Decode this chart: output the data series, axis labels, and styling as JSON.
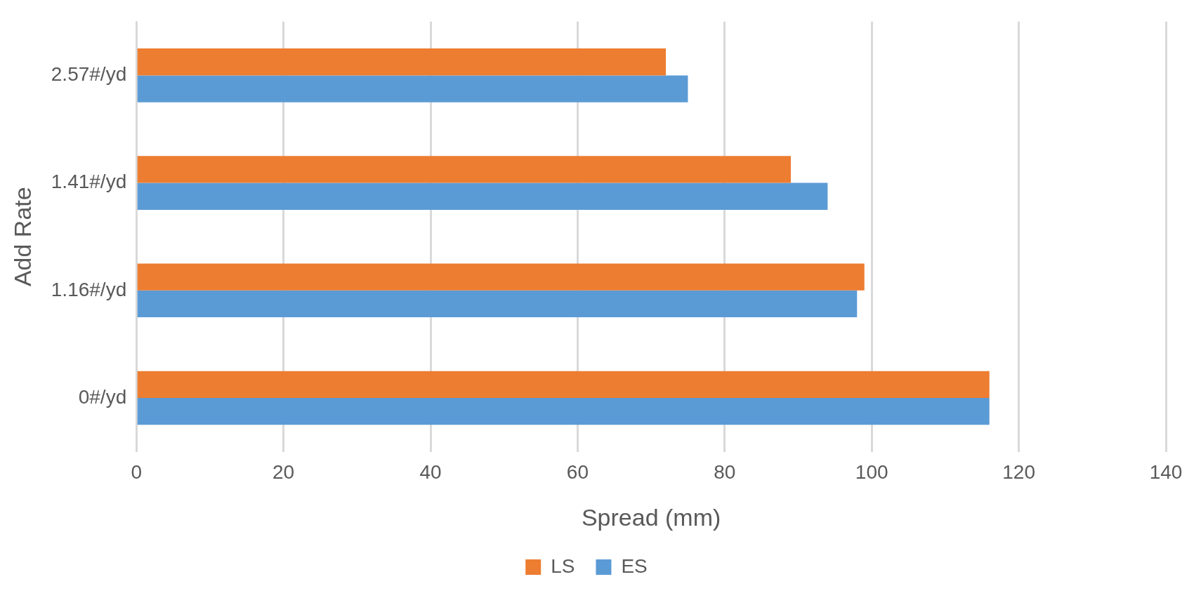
{
  "chart_data": {
    "type": "bar",
    "orientation": "horizontal",
    "xlabel": "Spread (mm)",
    "ylabel": "Add Rate",
    "categories": [
      "2.57#/yd",
      "1.41#/yd",
      "1.16#/yd",
      "0#/yd"
    ],
    "series": [
      {
        "name": "LS",
        "color": "#ed7d31",
        "values": [
          72,
          89,
          99,
          116
        ]
      },
      {
        "name": "ES",
        "color": "#5b9bd5",
        "values": [
          75,
          94,
          98,
          116
        ]
      }
    ],
    "xlim": [
      0,
      140
    ],
    "xticks": [
      0,
      20,
      40,
      60,
      80,
      100,
      120,
      140
    ],
    "grid": "x",
    "legend": "bottom"
  }
}
